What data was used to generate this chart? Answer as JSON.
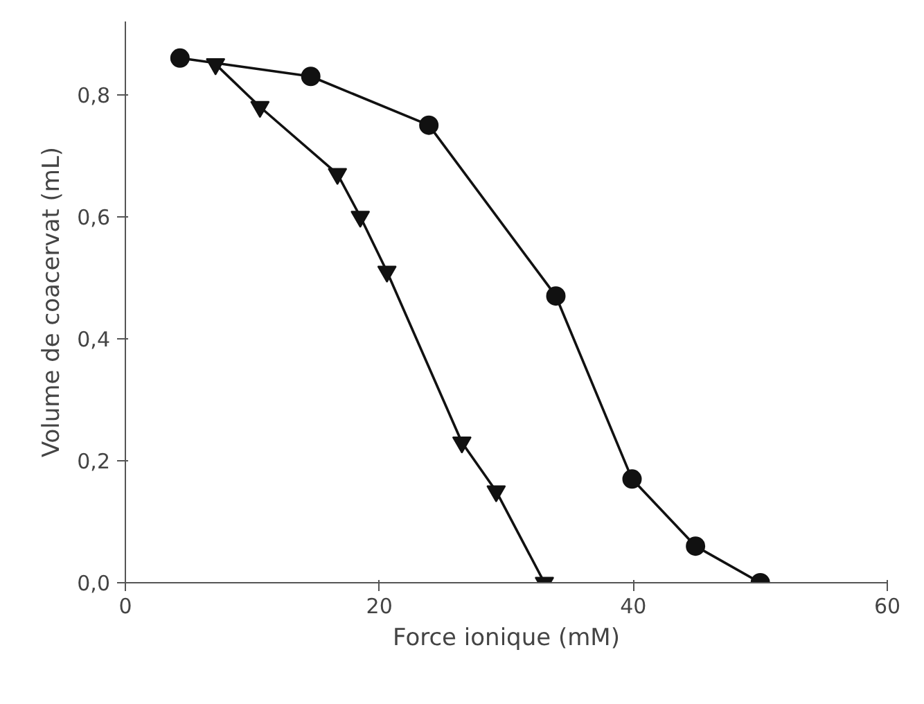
{
  "chart_data": {
    "type": "line",
    "xlabel": "Force ionique (mM)",
    "ylabel": "Volume de coacervat (mL)",
    "xlim": [
      0,
      60
    ],
    "xticks": [
      0,
      20,
      40,
      60
    ],
    "ylim": [
      0,
      0.92
    ],
    "yticks": [
      {
        "value": 0,
        "label": "0,0"
      },
      {
        "value": 0.2,
        "label": "0,2"
      },
      {
        "value": 0.4,
        "label": "0,4"
      },
      {
        "value": 0.6,
        "label": "0,6"
      },
      {
        "value": 0.8,
        "label": "0,8"
      }
    ],
    "grid": false,
    "series": [
      {
        "color": "#111111",
        "marker": "circle",
        "x": [
          4.3,
          14.6,
          23.9,
          33.9,
          39.9,
          44.9,
          50.0
        ],
        "values": [
          0.86,
          0.83,
          0.75,
          0.47,
          0.17,
          0.06,
          0.0
        ]
      },
      {
        "color": "#111111",
        "marker": "triangle",
        "x": [
          7.1,
          10.6,
          16.7,
          18.5,
          20.6,
          26.5,
          29.2,
          33.0
        ],
        "values": [
          0.85,
          0.78,
          0.67,
          0.6,
          0.51,
          0.23,
          0.15,
          0.0
        ]
      }
    ]
  }
}
